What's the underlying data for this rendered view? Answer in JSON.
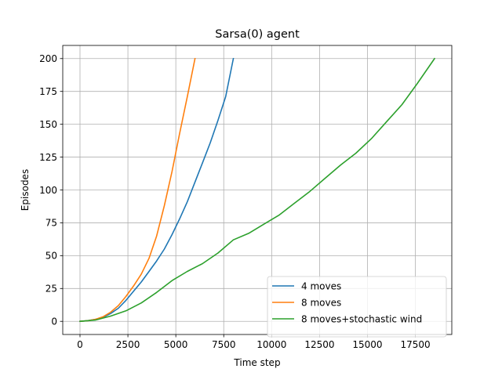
{
  "chart_data": {
    "type": "line",
    "title": "Sarsa(0) agent",
    "xlabel": "Time step",
    "ylabel": "Episodes",
    "xlim": [
      -900,
      19400
    ],
    "ylim": [
      -10,
      210
    ],
    "xticks": [
      0,
      2500,
      5000,
      7500,
      10000,
      12500,
      15000,
      17500
    ],
    "xtick_labels": [
      "0",
      "2500",
      "5000",
      "7500",
      "10000",
      "12500",
      "15000",
      "17500"
    ],
    "yticks": [
      0,
      25,
      50,
      75,
      100,
      125,
      150,
      175,
      200
    ],
    "ytick_labels": [
      "0",
      "25",
      "50",
      "75",
      "100",
      "125",
      "150",
      "175",
      "200"
    ],
    "grid": true,
    "legend_position": "lower-right",
    "series": [
      {
        "name": "4 moves",
        "color": "#1f77b4",
        "x": [
          0,
          400,
          800,
          1200,
          1600,
          2000,
          2400,
          2800,
          3200,
          3600,
          4000,
          4400,
          4800,
          5200,
          5600,
          6000,
          6400,
          6800,
          7200,
          7600,
          8000
        ],
        "y": [
          0,
          0.5,
          1.5,
          3,
          6,
          10,
          16,
          23,
          30,
          38,
          46,
          55,
          66,
          78,
          91,
          106,
          121,
          136,
          153,
          171,
          200
        ]
      },
      {
        "name": "8 moves",
        "color": "#ff7f0e",
        "x": [
          0,
          400,
          800,
          1200,
          1600,
          2000,
          2400,
          2800,
          3200,
          3600,
          4000,
          4400,
          4800,
          5200,
          5600,
          6000
        ],
        "y": [
          0,
          0.5,
          1.5,
          3.5,
          7,
          12,
          19,
          27,
          36,
          48,
          65,
          88,
          114,
          143,
          171,
          200
        ]
      },
      {
        "name": "8 moves+stochastic wind",
        "color": "#2ca02c",
        "x": [
          0,
          800,
          1600,
          2400,
          3200,
          4000,
          4800,
          5600,
          6400,
          7200,
          8000,
          8800,
          9600,
          10400,
          11200,
          12000,
          12800,
          13600,
          14400,
          15200,
          16000,
          16800,
          17600,
          18500
        ],
        "y": [
          0,
          1,
          4,
          8,
          14,
          22,
          31,
          38,
          44,
          52,
          62,
          67,
          74,
          81,
          90,
          99,
          109,
          119,
          128,
          139,
          152,
          165,
          181,
          200
        ]
      }
    ]
  }
}
